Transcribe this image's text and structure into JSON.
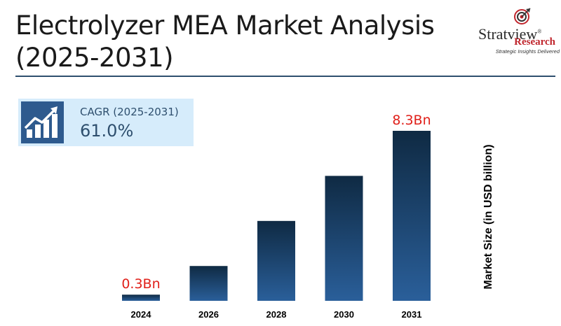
{
  "header": {
    "title": "Electrolyzer MEA Market Analysis (2025-2031)"
  },
  "logo": {
    "name": "Stratview",
    "registered": "®",
    "sub": "Research",
    "tagline": "Strategic Insights Delivered"
  },
  "cagr": {
    "label": "CAGR (2025-2031)",
    "value": "61.0%",
    "icon": "growth-chart-icon"
  },
  "colors": {
    "bar_top": "#0f2a43",
    "bar_bottom": "#2a5f9a",
    "value_label": "#e0201a",
    "cagr_bg": "#d6ecfb",
    "rule": "#2e4f6e"
  },
  "chart_data": {
    "type": "bar",
    "categories": [
      "2024",
      "2026",
      "2028",
      "2030",
      "2031"
    ],
    "values": [
      0.3,
      1.7,
      3.9,
      6.1,
      8.3
    ],
    "data_labels": [
      "0.3Bn",
      "",
      "",
      "",
      "8.3Bn"
    ],
    "xlabel": "",
    "ylabel": "Market Size (in USD billion)",
    "ylim": [
      0,
      8.3
    ],
    "grid": false,
    "legend": "none"
  }
}
